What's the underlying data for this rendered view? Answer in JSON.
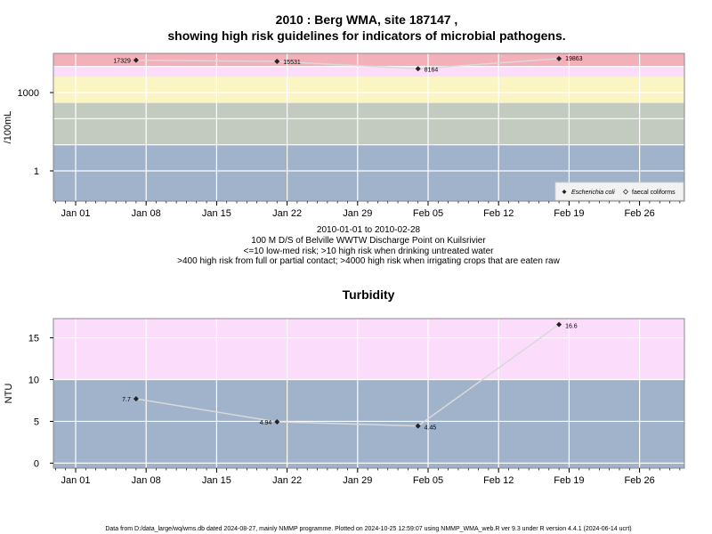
{
  "colors": {
    "band_red": "#f4b0b8",
    "band_pink": "#fbdcfb",
    "band_yellow": "#fbf5c3",
    "band_sage": "#c3cbc0",
    "band_blue": "#a1b3cb",
    "line": "#d9d9d9",
    "marker": "#222222",
    "grid": "#ffffff"
  },
  "footer": "Data from D:/data_large/wq/wms.db dated 2024-08-27, mainly NMMP programme. Plotted on 2024-10-25 12:59:07 using NMMP_WMA_web.R ver 9.3 under R version 4.4.1 (2024-06-14 ucrt)",
  "chart_data": [
    {
      "type": "scatter",
      "title_line1": "2010 : Berg WMA, site 187147 ,",
      "title_line2": "showing high risk guidelines for indicators of microbial pathogens.",
      "ylabel": "/100mL",
      "y_scale": "log10",
      "x_dates": [
        "2010-01-07",
        "2010-01-21",
        "2010-02-04",
        "2010-02-18"
      ],
      "x_tick_labels": [
        "Jan 01",
        "Jan 08",
        "Jan 15",
        "Jan 22",
        "Jan 29",
        "Feb 05",
        "Feb 12",
        "Feb 19",
        "Feb 26"
      ],
      "y_tick_labels": [
        "1",
        "1000"
      ],
      "series": [
        {
          "name": "Escherichia coli",
          "values": [
            17329,
            15531,
            8164,
            19863
          ],
          "point_labels": [
            "17329",
            "15531",
            "8164",
            "19863"
          ]
        }
      ],
      "legend_entries": [
        "Escherichia coli",
        "faecal coliforms"
      ],
      "legend_position": "bottom-right",
      "guideline_bands": [
        {
          "from": 10000,
          "color": "band_red"
        },
        {
          "from": 4000,
          "to": 10000,
          "color": "band_pink"
        },
        {
          "from": 400,
          "to": 4000,
          "color": "band_yellow"
        },
        {
          "from": 10,
          "to": 400,
          "color": "band_sage"
        },
        {
          "to": 10,
          "color": "band_blue"
        }
      ],
      "caption_lines": [
        "2010-01-01 to 2010-02-28",
        "100 M D/S of Belville WWTW Discharge Point on Kuilsrivier",
        "<=10 low-med risk; >10 high risk when drinking untreated water",
        ">400 high risk from full or partial contact; >4000 high risk when irrigating crops that are eaten raw"
      ]
    },
    {
      "type": "scatter",
      "title": "Turbidity",
      "ylabel": "NTU",
      "x_dates": [
        "2010-01-07",
        "2010-01-21",
        "2010-02-04",
        "2010-02-18"
      ],
      "x_tick_labels": [
        "Jan 01",
        "Jan 08",
        "Jan 15",
        "Jan 22",
        "Jan 29",
        "Feb 05",
        "Feb 12",
        "Feb 19",
        "Feb 26"
      ],
      "y_tick_labels": [
        "0",
        "5",
        "10",
        "15"
      ],
      "ylim": [
        -0.6,
        17.3
      ],
      "series": [
        {
          "values": [
            7.7,
            4.94,
            4.45,
            16.6
          ],
          "point_labels": [
            "7.7",
            "4.94",
            "4.45",
            "16.6"
          ]
        }
      ],
      "guideline_bands": [
        {
          "from": 10,
          "color": "band_pink"
        },
        {
          "to": 10,
          "color": "band_blue"
        }
      ]
    }
  ]
}
